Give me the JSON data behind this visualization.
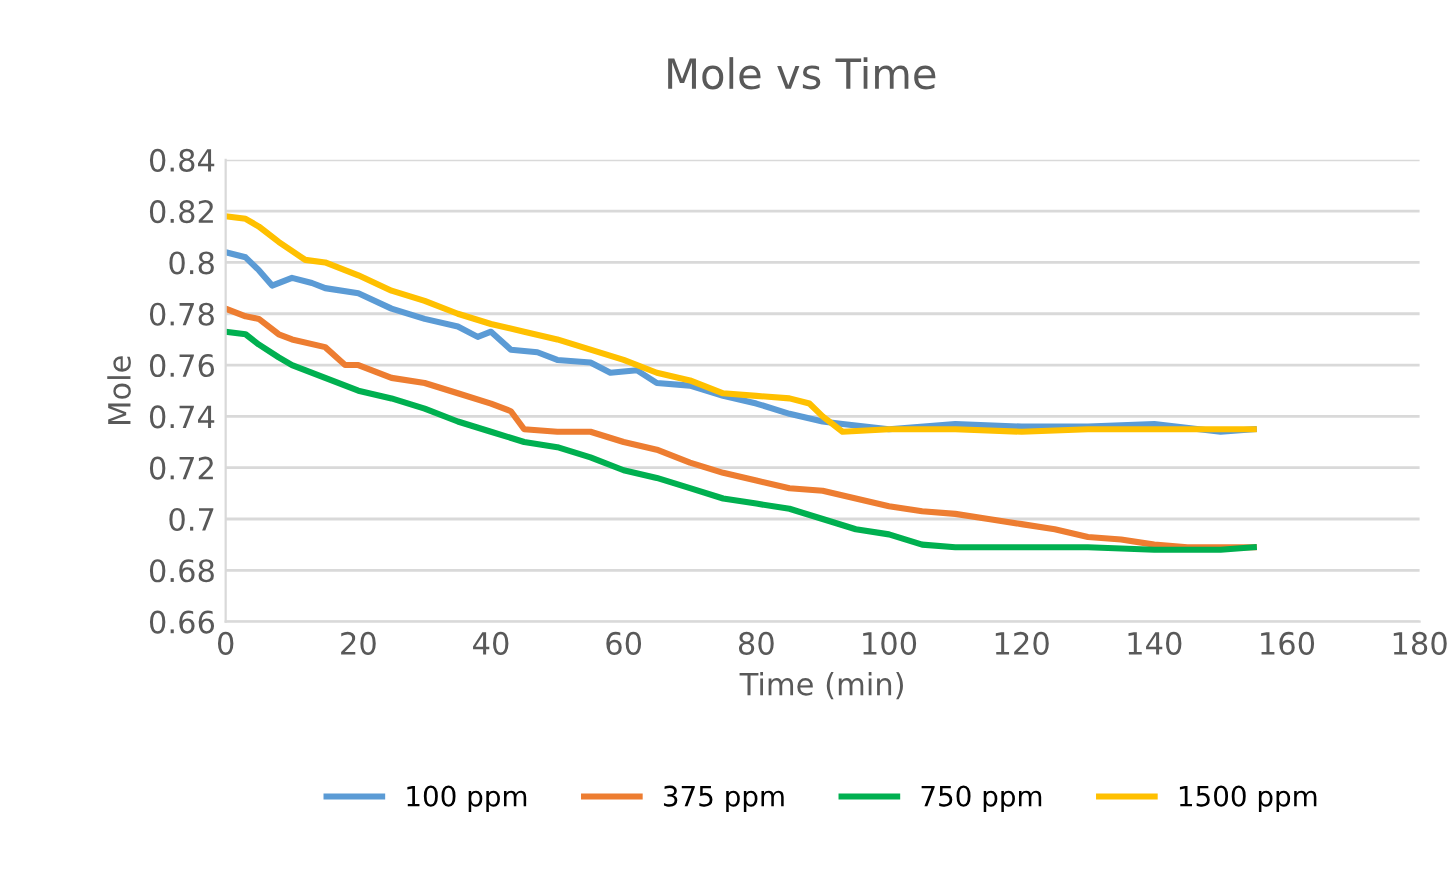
{
  "chart_data": {
    "type": "line",
    "title": "Mole vs Time",
    "xlabel": "Time (min)",
    "ylabel": "Mole",
    "xlim": [
      0,
      180
    ],
    "xticks": [
      0,
      20,
      40,
      60,
      80,
      100,
      120,
      140,
      160,
      180
    ],
    "ylim": [
      0.66,
      0.84
    ],
    "yticks": [
      {
        "value": 0.66,
        "label": "0.66"
      },
      {
        "value": 0.68,
        "label": "0.68"
      },
      {
        "value": 0.7,
        "label": "0.7"
      },
      {
        "value": 0.72,
        "label": "0.72"
      },
      {
        "value": 0.74,
        "label": "0.74"
      },
      {
        "value": 0.76,
        "label": "0.76"
      },
      {
        "value": 0.78,
        "label": "0.78"
      },
      {
        "value": 0.8,
        "label": "0.8"
      },
      {
        "value": 0.82,
        "label": "0.82"
      },
      {
        "value": 0.84,
        "label": "0.84"
      }
    ],
    "grid": "y",
    "legend": "bottom",
    "marker": "none",
    "line_style": "solid",
    "series": [
      {
        "name": "100 ppm",
        "color": "#5b9bd5",
        "x": [
          0,
          3,
          5,
          7,
          10,
          13,
          15,
          20,
          25,
          30,
          35,
          38,
          40,
          43,
          47,
          50,
          55,
          58,
          62,
          65,
          70,
          75,
          80,
          85,
          90,
          93,
          100,
          110,
          120,
          130,
          140,
          150,
          155
        ],
        "values": [
          0.804,
          0.802,
          0.797,
          0.791,
          0.794,
          0.792,
          0.79,
          0.788,
          0.782,
          0.778,
          0.775,
          0.771,
          0.773,
          0.766,
          0.765,
          0.762,
          0.761,
          0.757,
          0.758,
          0.753,
          0.752,
          0.748,
          0.745,
          0.741,
          0.738,
          0.737,
          0.735,
          0.737,
          0.736,
          0.736,
          0.737,
          0.734,
          0.735
        ]
      },
      {
        "name": "375 ppm",
        "color": "#ed7d31",
        "x": [
          0,
          3,
          5,
          8,
          10,
          15,
          18,
          20,
          25,
          30,
          35,
          40,
          43,
          45,
          50,
          55,
          60,
          65,
          70,
          75,
          80,
          85,
          90,
          95,
          100,
          105,
          110,
          115,
          120,
          125,
          130,
          135,
          140,
          145,
          150,
          155
        ],
        "values": [
          0.782,
          0.779,
          0.778,
          0.772,
          0.77,
          0.767,
          0.76,
          0.76,
          0.755,
          0.753,
          0.749,
          0.745,
          0.742,
          0.735,
          0.734,
          0.734,
          0.73,
          0.727,
          0.722,
          0.718,
          0.715,
          0.712,
          0.711,
          0.708,
          0.705,
          0.703,
          0.702,
          0.7,
          0.698,
          0.696,
          0.693,
          0.692,
          0.69,
          0.689,
          0.689,
          0.689
        ]
      },
      {
        "name": "750 ppm",
        "color": "#00b050",
        "x": [
          0,
          3,
          5,
          8,
          10,
          15,
          20,
          25,
          30,
          35,
          40,
          45,
          50,
          55,
          60,
          65,
          70,
          75,
          80,
          85,
          90,
          95,
          100,
          105,
          110,
          120,
          130,
          140,
          150,
          155
        ],
        "values": [
          0.773,
          0.772,
          0.768,
          0.763,
          0.76,
          0.755,
          0.75,
          0.747,
          0.743,
          0.738,
          0.734,
          0.73,
          0.728,
          0.724,
          0.719,
          0.716,
          0.712,
          0.708,
          0.706,
          0.704,
          0.7,
          0.696,
          0.694,
          0.69,
          0.689,
          0.689,
          0.689,
          0.688,
          0.688,
          0.689
        ]
      },
      {
        "name": "1500 ppm",
        "color": "#ffc000",
        "x": [
          0,
          3,
          5,
          8,
          12,
          15,
          20,
          25,
          30,
          35,
          40,
          45,
          50,
          55,
          60,
          65,
          70,
          75,
          80,
          85,
          88,
          90,
          93,
          100,
          110,
          120,
          130,
          140,
          150,
          155
        ],
        "values": [
          0.818,
          0.817,
          0.814,
          0.808,
          0.801,
          0.8,
          0.795,
          0.789,
          0.785,
          0.78,
          0.776,
          0.773,
          0.77,
          0.766,
          0.762,
          0.757,
          0.754,
          0.749,
          0.748,
          0.747,
          0.745,
          0.74,
          0.734,
          0.735,
          0.735,
          0.734,
          0.735,
          0.735,
          0.735,
          0.735
        ]
      }
    ]
  }
}
